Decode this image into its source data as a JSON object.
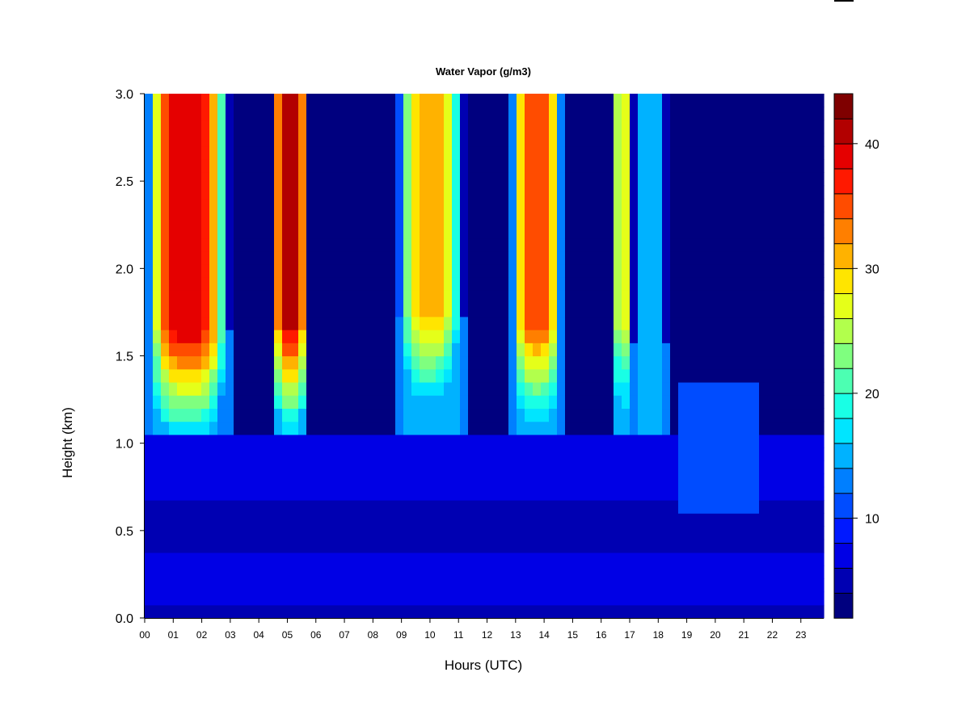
{
  "chart_data": {
    "type": "heatmap",
    "title": "Water Vapor (g/m3)",
    "xlabel": "Hours (UTC)",
    "ylabel": "Height (km)",
    "xlim": [
      0,
      23.8
    ],
    "ylim": [
      0,
      3.0
    ],
    "x_ticks": [
      "00",
      "01",
      "02",
      "03",
      "04",
      "05",
      "06",
      "07",
      "08",
      "09",
      "10",
      "11",
      "12",
      "13",
      "14",
      "15",
      "16",
      "17",
      "18",
      "19",
      "20",
      "21",
      "22",
      "23"
    ],
    "y_ticks": [
      "0.0",
      "0.5",
      "1.0",
      "1.5",
      "2.0",
      "2.5",
      "3.0"
    ],
    "colorbar": {
      "min": 2,
      "max": 44,
      "levels": 21,
      "ticks": [
        "10",
        "20",
        "30",
        "40"
      ],
      "colors": [
        "#00007f",
        "#0000b2",
        "#0000e5",
        "#0019ff",
        "#004cff",
        "#007fff",
        "#00b2ff",
        "#00e5ff",
        "#19ffe5",
        "#4cffb2",
        "#7fff7f",
        "#b2ff4c",
        "#e5ff19",
        "#ffe500",
        "#ffb200",
        "#ff7f00",
        "#ff4c00",
        "#ff1900",
        "#e50000",
        "#b20000",
        "#7f0000"
      ]
    },
    "grid": false,
    "legend": "right colorbar",
    "surface_profile": [
      0.1,
      0.4,
      0.8,
      1.2
    ],
    "moist_events": [
      {
        "start": 0.0,
        "end": 3.0,
        "peak": 40,
        "cap_height": 1.65
      },
      {
        "start": 4.4,
        "end": 5.8,
        "peak": 41,
        "cap_height": 1.7
      },
      {
        "start": 8.8,
        "end": 11.2,
        "peak": 31,
        "cap_height": 1.75
      },
      {
        "start": 12.8,
        "end": 14.7,
        "peak": 36,
        "cap_height": 1.7
      },
      {
        "start": 16.4,
        "end": 17.1,
        "peak": 27,
        "cap_height": 1.65
      },
      {
        "start": 17.1,
        "end": 18.3,
        "peak": 16,
        "cap_height": 1.6
      }
    ]
  }
}
